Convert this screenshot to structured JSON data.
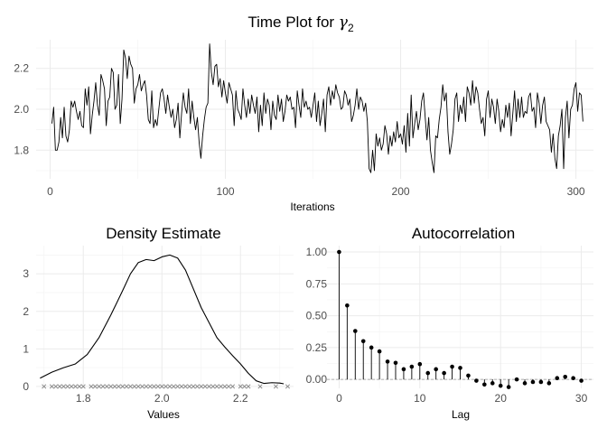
{
  "chart_data": [
    {
      "type": "line",
      "title_main": "Time Plot for ",
      "title_symbol": "γ",
      "title_sub": "2",
      "xlabel": "Iterations",
      "ylabel": "",
      "xlim": [
        -8,
        310
      ],
      "ylim": [
        1.66,
        2.34
      ],
      "xticks": [
        0,
        100,
        200,
        300
      ],
      "yticks": [
        1.8,
        2.0,
        2.2
      ],
      "grid": true,
      "series": [
        {
          "x_start": 1,
          "x_step": 1,
          "values": [
            1.93,
            2.01,
            1.8,
            1.8,
            1.84,
            1.96,
            1.86,
            2.01,
            1.87,
            1.84,
            1.9,
            2.04,
            2.01,
            2.04,
            1.99,
            1.95,
            1.99,
            1.92,
            1.91,
            2.1,
            2.02,
            2.11,
            1.88,
            1.97,
            2.04,
            2.13,
            2.02,
            1.97,
            2.17,
            2.14,
            2.1,
            1.92,
            2.04,
            2.06,
            2.2,
            2.18,
            2.0,
            2.02,
            2.17,
            1.93,
            2.05,
            2.29,
            2.25,
            2.15,
            2.26,
            2.22,
            2.2,
            2.03,
            2.1,
            2.12,
            2.17,
            2.09,
            2.12,
            2.14,
            2.07,
            1.95,
            1.93,
            2.09,
            1.91,
            1.95,
            1.92,
            2.0,
            2.08,
            2.1,
            2.05,
            1.98,
            2.07,
            2.01,
            1.96,
            2.0,
            1.91,
            1.95,
            2.03,
            1.86,
            1.98,
            2.08,
            2.01,
            1.98,
            2.1,
            1.93,
            2.04,
            1.96,
            1.9,
            1.96,
            1.84,
            1.76,
            1.87,
            1.95,
            2.01,
            2.03,
            2.32,
            2.18,
            2.12,
            2.21,
            2.22,
            2.11,
            2.15,
            2.06,
            2.14,
            2.08,
            2.03,
            2.13,
            2.1,
            2.07,
            1.92,
            2.09,
            2.0,
            1.98,
            1.95,
            2.1,
            2.02,
            1.96,
            2.05,
            1.98,
            2.07,
            2.02,
            1.98,
            2.06,
            1.89,
            2.02,
            1.92,
            2.08,
            1.98,
            2.05,
            2.02,
            1.9,
            2.04,
            1.97,
            1.95,
            2.07,
            1.99,
            2.05,
            1.94,
            1.99,
            2.07,
            2.04,
            2.06,
            2.0,
            2.01,
            1.91,
            2.09,
            2.02,
            1.96,
            2.1,
            2.01,
            2.04,
            2.0,
            2.01,
            1.96,
            2.02,
            2.08,
            1.94,
            2.04,
            1.92,
            1.98,
            2.05,
            1.89,
            2.07,
            2.11,
            2.02,
            2.09,
            2.05,
            2.12,
            2.08,
            2.06,
            2.0,
            2.01,
            2.09,
            2.07,
            2.02,
            2.05,
            1.94,
            1.97,
            2.02,
            2.1,
            2.0,
            2.06,
            2.04,
            1.99,
            2.03,
            1.94,
            1.71,
            1.69,
            1.8,
            1.7,
            1.88,
            1.82,
            1.86,
            1.8,
            1.83,
            1.92,
            1.88,
            1.78,
            1.87,
            1.82,
            1.89,
            1.84,
            1.94,
            1.86,
            1.88,
            1.83,
            1.92,
            1.79,
            1.98,
            1.82,
            2.07,
            1.86,
            1.93,
            1.99,
            1.9,
            1.95,
            2.04,
            2.08,
            1.96,
            1.85,
            1.96,
            1.8,
            1.74,
            1.69,
            1.87,
            1.86,
            1.95,
            2.01,
            2.12,
            2.04,
            2.08,
            1.89,
            1.78,
            1.83,
            1.9,
            2.05,
            2.08,
            1.94,
            2.02,
            1.98,
            2.06,
            1.94,
            2.11,
            2.08,
            2.02,
            2.14,
            2.03,
            2.11,
            2.08,
            2.0,
            1.93,
            1.96,
            1.87,
            2.05,
            2.09,
            1.96,
            2.05,
            2.01,
            1.93,
            2.05,
            1.99,
            1.89,
            1.95,
            1.91,
            2.02,
            1.96,
            2.03,
            1.87,
            1.98,
            2.09,
            1.94,
            2.05,
            1.96,
            2.06,
            1.96,
            1.99,
            1.98,
            2.06,
            2.08,
            1.99,
            2.01,
            1.91,
            2.08,
            2.03,
            1.93,
            2.02,
            2.06,
            1.94,
            1.92,
            1.9,
            1.79,
            1.88,
            1.76,
            1.71,
            1.87,
            1.92,
            2.0,
            1.71,
            1.96,
            2.04,
            1.86,
            2.0,
            2.02,
            2.1,
            2.13,
            1.99,
            2.08,
            2.07,
            1.94
          ]
        }
      ]
    },
    {
      "type": "area",
      "title": "Density Estimate",
      "xlabel": "Values",
      "ylabel": "",
      "xlim": [
        1.68,
        2.335
      ],
      "ylim": [
        -0.05,
        3.75
      ],
      "xticks": [
        1.8,
        2.0,
        2.2
      ],
      "yticks": [
        0,
        1,
        2,
        3
      ],
      "grid": true,
      "series": [
        {
          "x": [
            1.69,
            1.72,
            1.75,
            1.78,
            1.81,
            1.84,
            1.87,
            1.9,
            1.92,
            1.94,
            1.96,
            1.98,
            2.0,
            2.02,
            2.04,
            2.06,
            2.08,
            2.1,
            2.12,
            2.14,
            2.16,
            2.18,
            2.2,
            2.22,
            2.24,
            2.26,
            2.28,
            2.3,
            2.31
          ],
          "y": [
            0.22,
            0.38,
            0.5,
            0.6,
            0.85,
            1.3,
            1.9,
            2.55,
            3.0,
            3.3,
            3.38,
            3.35,
            3.45,
            3.5,
            3.42,
            3.1,
            2.6,
            2.1,
            1.7,
            1.3,
            1.05,
            0.82,
            0.6,
            0.35,
            0.15,
            0.08,
            0.1,
            0.09,
            0.07
          ]
        }
      ],
      "rug_x": [
        1.7,
        1.72,
        1.73,
        1.74,
        1.75,
        1.76,
        1.77,
        1.78,
        1.79,
        1.8,
        1.82,
        1.83,
        1.84,
        1.85,
        1.86,
        1.87,
        1.88,
        1.89,
        1.9,
        1.91,
        1.92,
        1.93,
        1.94,
        1.95,
        1.96,
        1.97,
        1.98,
        1.99,
        2.0,
        2.01,
        2.02,
        2.03,
        2.04,
        2.05,
        2.06,
        2.07,
        2.08,
        2.09,
        2.1,
        2.11,
        2.12,
        2.13,
        2.14,
        2.15,
        2.16,
        2.17,
        2.18,
        2.2,
        2.21,
        2.22,
        2.25,
        2.29,
        2.32
      ]
    },
    {
      "type": "bar",
      "title": "Autocorrelation",
      "xlabel": "Lag",
      "ylabel": "",
      "xlim": [
        -1.5,
        31.5
      ],
      "ylim": [
        -0.07,
        1.05
      ],
      "xticks": [
        0,
        10,
        20,
        30
      ],
      "yticks": [
        0.0,
        0.25,
        0.5,
        0.75,
        1.0
      ],
      "ytick_labels": [
        "0.00",
        "0.25",
        "0.50",
        "0.75",
        "1.00"
      ],
      "grid": true,
      "lags": [
        0,
        1,
        2,
        3,
        4,
        5,
        6,
        7,
        8,
        9,
        10,
        11,
        12,
        13,
        14,
        15,
        16,
        17,
        18,
        19,
        20,
        21,
        22,
        23,
        24,
        25,
        26,
        27,
        28,
        29,
        30
      ],
      "values": [
        1.0,
        0.58,
        0.38,
        0.3,
        0.25,
        0.22,
        0.14,
        0.13,
        0.08,
        0.1,
        0.12,
        0.05,
        0.08,
        0.05,
        0.1,
        0.09,
        0.03,
        -0.01,
        -0.04,
        -0.03,
        -0.05,
        -0.06,
        0.0,
        -0.03,
        -0.02,
        -0.02,
        -0.03,
        0.01,
        0.02,
        0.01,
        -0.01
      ]
    }
  ]
}
